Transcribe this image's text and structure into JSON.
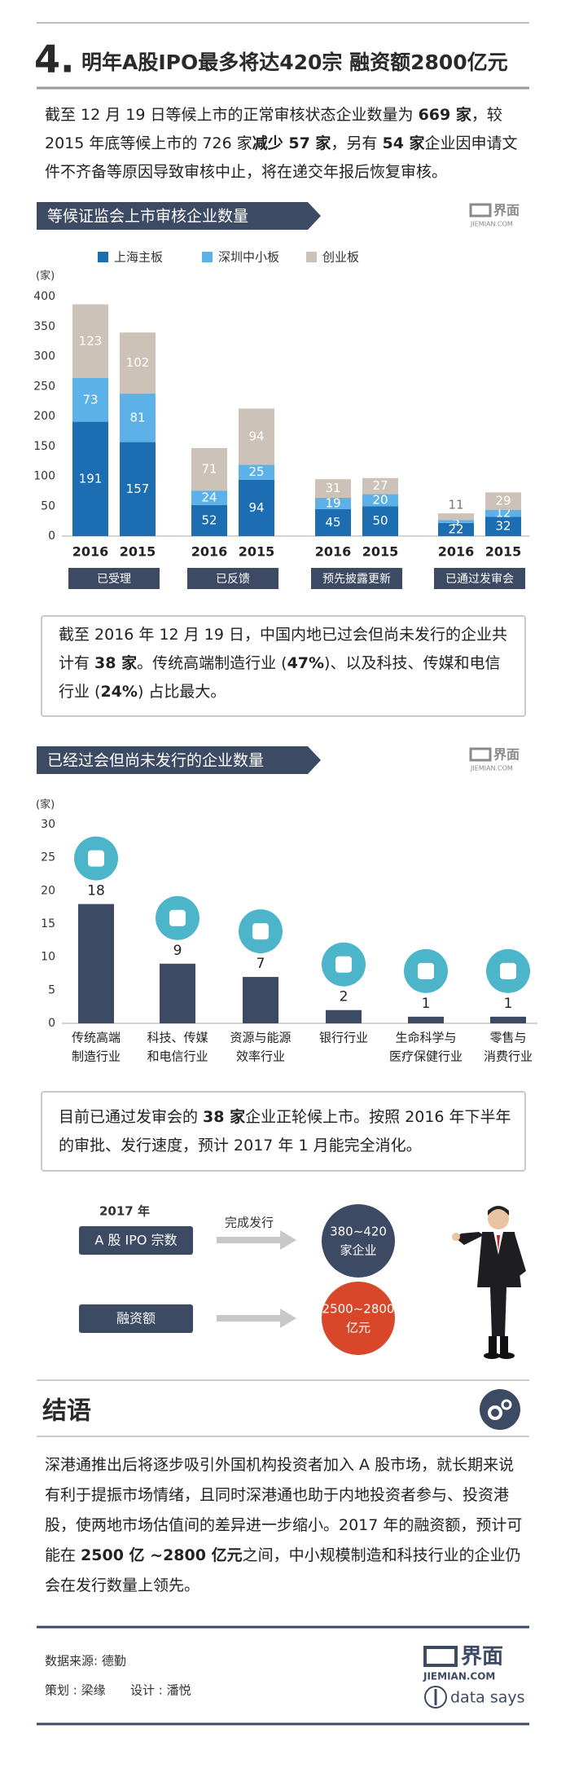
{
  "header": {
    "number": "4.",
    "title": "明年A股IPO最多将达420宗 融资额2800亿元"
  },
  "intro": [
    {
      "text": "截至 12 月 19 日等候上市的正常审核状态企业数量为 ",
      "bold": false
    },
    {
      "text": "669 家",
      "bold": true
    },
    {
      "text": "，较 2015 年底等候上市的 726 家",
      "bold": false
    },
    {
      "text": "减少 57 家",
      "bold": true
    },
    {
      "text": "，另有 ",
      "bold": false
    },
    {
      "text": "54 家",
      "bold": true
    },
    {
      "text": "企业因申请文件不齐备等原因导致审核中止，将在递交年报后恢复审核。",
      "bold": false
    }
  ],
  "logo": {
    "name": "界面",
    "url": "JIEMIAN.COM"
  },
  "chart_data": [
    {
      "type": "stacked_bar",
      "title": "等候证监会上市审核企业数量",
      "y_label": "(家)",
      "categories": [
        "2016",
        "2015",
        "2016",
        "2015",
        "2016",
        "2015",
        "2016",
        "2015"
      ],
      "groups": [
        "已受理",
        "已反馈",
        "预先披露更新",
        "已通过发审会"
      ],
      "series": [
        {
          "name": "上海主板",
          "color": "#1c6db2",
          "values": [
            191,
            157,
            52,
            94,
            45,
            50,
            22,
            32
          ]
        },
        {
          "name": "深圳中小板",
          "color": "#5cb1e8",
          "values": [
            73,
            81,
            24,
            25,
            19,
            20,
            5,
            12
          ]
        },
        {
          "name": "创业板",
          "color": "#cdc2b8",
          "values": [
            123,
            102,
            71,
            94,
            31,
            27,
            11,
            29
          ]
        }
      ],
      "ylim": [
        0,
        400
      ],
      "yticks": [
        0,
        50,
        100,
        150,
        200,
        250,
        300,
        350,
        400
      ],
      "grid": false
    },
    {
      "type": "bar",
      "title": "已经过会但尚未发行的企业数量",
      "y_label": "(家)",
      "categories": [
        [
          "传统高端",
          "制造行业"
        ],
        [
          "科技、传媒",
          "和电信行业"
        ],
        [
          "资源与能源",
          "效率行业"
        ],
        [
          "银行行业"
        ],
        [
          "生命科学与",
          "医疗保健行业"
        ],
        [
          "零售与",
          "消费行业"
        ]
      ],
      "values": [
        18,
        9,
        7,
        2,
        1,
        1
      ],
      "color": "#3d4a63",
      "icon_color": "#4cb5c9",
      "ylim": [
        0,
        30
      ],
      "yticks": [
        0,
        5,
        10,
        15,
        20,
        25,
        30
      ],
      "grid": false
    }
  ],
  "note1": [
    {
      "text": "截至 2016 年 12 月 19 日，中国内地已过会但尚未发行的企业共计有 ",
      "bold": false
    },
    {
      "text": "38 家",
      "bold": true
    },
    {
      "text": "。传统高端制造行业 (",
      "bold": false
    },
    {
      "text": "47%",
      "bold": true
    },
    {
      "text": ")、以及科技、传媒和电信行业 (",
      "bold": false
    },
    {
      "text": "24%",
      "bold": true
    },
    {
      "text": ") 占比最大。",
      "bold": false
    }
  ],
  "note2": [
    {
      "text": "目前已通过发审会的 ",
      "bold": false
    },
    {
      "text": "38 家",
      "bold": true
    },
    {
      "text": "企业正轮候上市。按照 2016 年下半年的审批、发行速度，预计 2017 年 1 月能完全消化。",
      "bold": false
    }
  ],
  "flow": {
    "year": "2017 年",
    "arrow_label": "完成发行",
    "rows": [
      {
        "label": "A 股 IPO 宗数",
        "result": [
          "380~420",
          "家企业"
        ],
        "color": "#3d4a63"
      },
      {
        "label": "融资额",
        "result": [
          "2500~2800",
          "亿元"
        ],
        "color": "#d9472b"
      }
    ]
  },
  "conclusion": {
    "title": "结语",
    "text": [
      {
        "text": "深港通推出后将逐步吸引外国机构投资者加入 A 股市场，就长期来说有利于提振市场情绪，且同时深港通也助于内地投资者参与、投资港股，使两地市场估值间的差异进一步缩小。2017 年的融资额，预计可能在 ",
        "bold": false
      },
      {
        "text": "2500 亿 ~2800 亿元",
        "bold": true
      },
      {
        "text": "之间，中小规模制造和科技行业的企业仍会在发行数量上领先。",
        "bold": false
      }
    ]
  },
  "footer": {
    "source": "数据来源: 德勤",
    "planner": "策划 : 梁缘",
    "designer": "设计 : 潘悦",
    "brand": "data says"
  }
}
